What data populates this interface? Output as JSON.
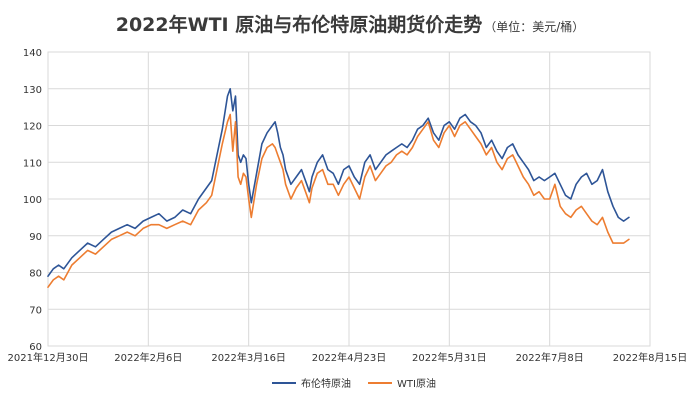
{
  "title": "2022年WTI 原油与布伦特原油期货价走势",
  "unit": "（单位：美元/桶）",
  "chart_data": {
    "type": "line",
    "title": "2022年WTI 原油与布伦特原油期货价走势",
    "subtitle": "（单位：美元/桶）",
    "xlabel": "",
    "ylabel": "",
    "ylim": [
      60,
      140
    ],
    "yticks": [
      60,
      70,
      80,
      90,
      100,
      110,
      120,
      130,
      140
    ],
    "x_tick_labels": [
      "2021年12月30日",
      "2022年2月6日",
      "2022年3月16日",
      "2022年4月23日",
      "2022年5月31日",
      "2022年7月8日",
      "2022年8月15日"
    ],
    "x_tick_offsets_days": [
      0,
      38,
      76,
      114,
      152,
      190,
      228
    ],
    "grid": "both",
    "legend_position": "bottom",
    "series": [
      {
        "name": "布伦特原油",
        "color": "#2e5597",
        "x": [
          0,
          2,
          4,
          6,
          9,
          12,
          15,
          18,
          21,
          24,
          27,
          30,
          33,
          36,
          39,
          42,
          45,
          48,
          51,
          54,
          57,
          60,
          62,
          64,
          66,
          68,
          69,
          70,
          71,
          72,
          73,
          74,
          75,
          76,
          77,
          79,
          81,
          83,
          85,
          86,
          87,
          88,
          89,
          90,
          92,
          94,
          96,
          98,
          99,
          100,
          102,
          104,
          106,
          108,
          110,
          112,
          114,
          116,
          118,
          120,
          122,
          124,
          126,
          128,
          130,
          132,
          134,
          136,
          138,
          140,
          142,
          144,
          146,
          148,
          150,
          152,
          154,
          156,
          158,
          160,
          162,
          164,
          166,
          168,
          170,
          172,
          174,
          176,
          178,
          180,
          182,
          184,
          186,
          188,
          190,
          192,
          194,
          196,
          198,
          200,
          202,
          204,
          206,
          208,
          210,
          212,
          214,
          216,
          218,
          220
        ],
        "values": [
          79,
          81,
          82,
          81,
          84,
          86,
          88,
          87,
          89,
          91,
          92,
          93,
          92,
          94,
          95,
          96,
          94,
          95,
          97,
          96,
          100,
          103,
          105,
          112,
          119,
          128,
          130,
          124,
          128,
          112,
          110,
          112,
          111,
          104,
          99,
          107,
          115,
          118,
          120,
          121,
          118,
          114,
          112,
          108,
          104,
          106,
          108,
          104,
          102,
          106,
          110,
          112,
          108,
          107,
          104,
          108,
          109,
          106,
          104,
          110,
          112,
          108,
          110,
          112,
          113,
          114,
          115,
          114,
          116,
          119,
          120,
          122,
          118,
          116,
          120,
          121,
          119,
          122,
          123,
          121,
          120,
          118,
          114,
          116,
          113,
          111,
          114,
          115,
          112,
          110,
          108,
          105,
          106,
          105,
          106,
          107,
          104,
          101,
          100,
          104,
          106,
          107,
          104,
          105,
          108,
          102,
          98,
          95,
          94,
          95
        ]
      },
      {
        "name": "WTI原油",
        "color": "#ed7d31",
        "x": [
          0,
          2,
          4,
          6,
          9,
          12,
          15,
          18,
          21,
          24,
          27,
          30,
          33,
          36,
          39,
          42,
          45,
          48,
          51,
          54,
          57,
          60,
          62,
          64,
          66,
          68,
          69,
          70,
          71,
          72,
          73,
          74,
          75,
          76,
          77,
          79,
          81,
          83,
          85,
          86,
          87,
          88,
          89,
          90,
          92,
          94,
          96,
          98,
          99,
          100,
          102,
          104,
          106,
          108,
          110,
          112,
          114,
          116,
          118,
          120,
          122,
          124,
          126,
          128,
          130,
          132,
          134,
          136,
          138,
          140,
          142,
          144,
          146,
          148,
          150,
          152,
          154,
          156,
          158,
          160,
          162,
          164,
          166,
          168,
          170,
          172,
          174,
          176,
          178,
          180,
          182,
          184,
          186,
          188,
          190,
          192,
          194,
          196,
          198,
          200,
          202,
          204,
          206,
          208,
          210,
          212,
          214,
          216,
          218,
          220
        ],
        "values": [
          76,
          78,
          79,
          78,
          82,
          84,
          86,
          85,
          87,
          89,
          90,
          91,
          90,
          92,
          93,
          93,
          92,
          93,
          94,
          93,
          97,
          99,
          101,
          108,
          115,
          121,
          123,
          113,
          121,
          106,
          104,
          107,
          106,
          100,
          95,
          104,
          111,
          114,
          115,
          114,
          112,
          110,
          108,
          104,
          100,
          103,
          105,
          101,
          99,
          103,
          107,
          108,
          104,
          104,
          101,
          104,
          106,
          103,
          100,
          106,
          109,
          105,
          107,
          109,
          110,
          112,
          113,
          112,
          114,
          117,
          119,
          121,
          116,
          114,
          118,
          120,
          117,
          120,
          121,
          119,
          117,
          115,
          112,
          114,
          110,
          108,
          111,
          112,
          109,
          106,
          104,
          101,
          102,
          100,
          100,
          104,
          98,
          96,
          95,
          97,
          98,
          96,
          94,
          93,
          95,
          91,
          88,
          88,
          88,
          89
        ]
      }
    ]
  }
}
